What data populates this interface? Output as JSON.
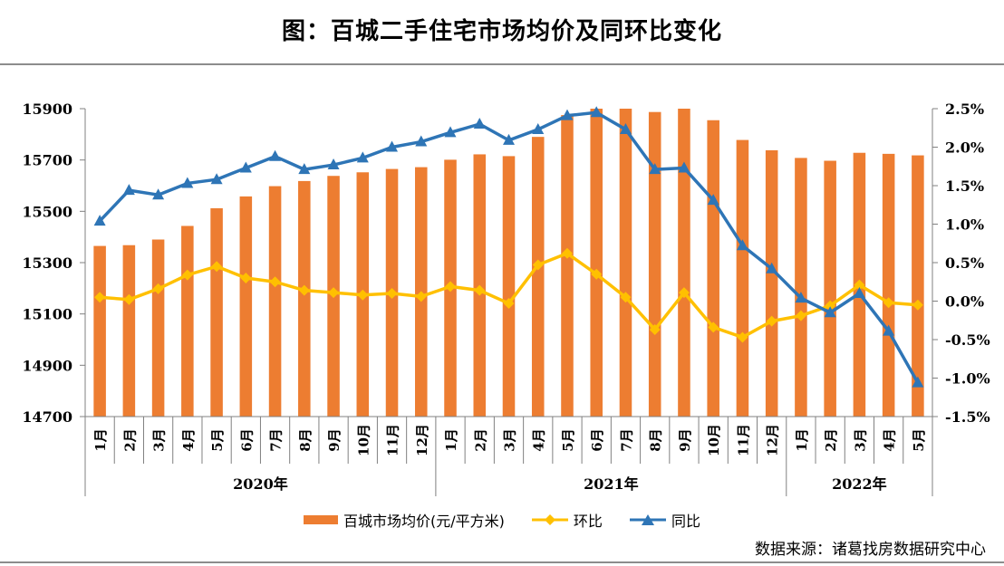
{
  "chart_data": {
    "type": "bar+line",
    "title": "图：百城二手住宅市场均价及同环比变化",
    "categories": [
      "1月",
      "2月",
      "3月",
      "4月",
      "5月",
      "6月",
      "7月",
      "8月",
      "9月",
      "10月",
      "11月",
      "12月",
      "1月",
      "2月",
      "3月",
      "4月",
      "5月",
      "6月",
      "7月",
      "8月",
      "9月",
      "10月",
      "11月",
      "12月",
      "1月",
      "2月",
      "3月",
      "4月",
      "5月"
    ],
    "year_groups": [
      {
        "label": "2020年",
        "count": 12
      },
      {
        "label": "2021年",
        "count": 12
      },
      {
        "label": "2022年",
        "count": 5
      }
    ],
    "left_axis": {
      "min": 14700,
      "max": 15900,
      "ticks": [
        "14700",
        "14900",
        "15100",
        "15300",
        "15500",
        "15700",
        "15900"
      ]
    },
    "right_axis": {
      "min": -1.5,
      "max": 2.5,
      "ticks": [
        "-1.5%",
        "-1.0%",
        "-0.5%",
        "0.0%",
        "0.5%",
        "1.0%",
        "1.5%",
        "2.0%",
        "2.5%"
      ]
    },
    "series": [
      {
        "name": "百城市场均价(元/平方米)",
        "kind": "bar",
        "axis": "left",
        "color": "#ED7D31",
        "values": [
          15365,
          15368,
          15390,
          15443,
          15512,
          15558,
          15598,
          15618,
          15638,
          15652,
          15665,
          15672,
          15701,
          15722,
          15715,
          15790,
          15875,
          15900,
          15900,
          15887,
          15900,
          15855,
          15778,
          15738,
          15708,
          15697,
          15728,
          15724,
          15718
        ]
      },
      {
        "name": "环比",
        "kind": "line",
        "axis": "right",
        "color": "#FFC000",
        "marker": "diamond",
        "values": [
          0.05,
          0.02,
          0.16,
          0.34,
          0.45,
          0.3,
          0.25,
          0.14,
          0.11,
          0.08,
          0.1,
          0.06,
          0.19,
          0.14,
          -0.03,
          0.47,
          0.62,
          0.35,
          0.05,
          -0.37,
          0.11,
          -0.34,
          -0.47,
          -0.26,
          -0.19,
          -0.06,
          0.21,
          -0.02,
          -0.05
        ]
      },
      {
        "name": "同比",
        "kind": "line",
        "axis": "right",
        "color": "#2E75B6",
        "marker": "triangle",
        "values": [
          1.04,
          1.44,
          1.38,
          1.53,
          1.58,
          1.73,
          1.88,
          1.71,
          1.77,
          1.86,
          2.0,
          2.07,
          2.19,
          2.3,
          2.09,
          2.23,
          2.41,
          2.45,
          2.23,
          1.71,
          1.73,
          1.31,
          0.72,
          0.42,
          0.04,
          -0.15,
          0.1,
          -0.39,
          -1.06
        ]
      }
    ],
    "legend_position": "bottom",
    "grid": false
  },
  "source": "数据来源：诸葛找房数据研究中心"
}
